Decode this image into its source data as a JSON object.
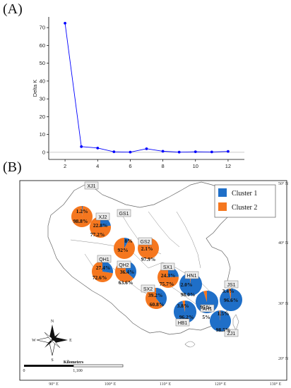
{
  "panel_a_label": "(A)",
  "panel_b_label": "(B)",
  "chart_data": [
    {
      "type": "line",
      "xlabel": "K",
      "ylabel": "Delta K",
      "x": [
        2,
        3,
        4,
        5,
        6,
        7,
        8,
        9,
        10,
        11,
        12
      ],
      "y": [
        72.5,
        3.2,
        2.4,
        0.3,
        0.1,
        2.0,
        0.6,
        0.1,
        0.3,
        0.2,
        0.5
      ],
      "xticks": [
        2,
        4,
        6,
        8,
        10,
        12
      ],
      "yticks": [
        0,
        10,
        20,
        30,
        40,
        50,
        60,
        70
      ],
      "xlim": [
        1,
        13
      ],
      "ylim": [
        -4,
        76
      ],
      "color": "#0000ff"
    },
    {
      "type": "pie",
      "legend": [
        {
          "name": "Cluster 1",
          "color": "#1f6fc8"
        },
        {
          "name": "Cluster 2",
          "color": "#f5771f"
        }
      ],
      "legend_position": "top-right",
      "sites": [
        {
          "name": "XJ1",
          "c1": 1.2,
          "c2": 98.8,
          "c1_label": "1.2%",
          "c2_label": "98.8%"
        },
        {
          "name": "XJ2",
          "c1": 22.8,
          "c2": 77.2,
          "c1_label": "22.8%",
          "c2_label": "77.2%"
        },
        {
          "name": "GS1",
          "c1": 8,
          "c2": 92,
          "c1_label": "8%",
          "c2_label": "92%"
        },
        {
          "name": "GS2",
          "c1": 2.1,
          "c2": 97.9,
          "c1_label": "2.1%",
          "c2_label": "97.9%"
        },
        {
          "name": "QH1",
          "c1": 27.4,
          "c2": 72.6,
          "c1_label": "27.4%",
          "c2_label": "72.6%"
        },
        {
          "name": "QH2",
          "c1": 36.4,
          "c2": 63.6,
          "c1_label": "36.4%",
          "c2_label": "63.6%"
        },
        {
          "name": "SX1",
          "c1": 24.3,
          "c2": 75.7,
          "c1_label": "24.3%",
          "c2_label": "75.7%"
        },
        {
          "name": "SX2",
          "c1": 39.2,
          "c2": 60.8,
          "c1_label": "39.2%",
          "c2_label": "60.8%"
        },
        {
          "name": "HN1",
          "c1": 98.0,
          "c2": 2.0,
          "c1_label": "98.0%",
          "c2_label": "2.0%"
        },
        {
          "name": "AH1",
          "c1": 95,
          "c2": 5,
          "c1_label": "95%",
          "c2_label": "5%"
        },
        {
          "name": "JS1",
          "c1": 96.6,
          "c2": 3.4,
          "c1_label": "96.6%",
          "c2_label": "3.4%"
        },
        {
          "name": "HB1",
          "c1": 96.2,
          "c2": 3.8,
          "c1_label": "96.2%",
          "c2_label": "3.8%"
        },
        {
          "name": "ZJ1",
          "c1": 98.5,
          "c2": 1.5,
          "c1_label": "98.5%",
          "c2_label": "1.5%"
        }
      ],
      "longitude_ticks": [
        "90° E",
        "100° E",
        "110° E",
        "120° E",
        "130° E"
      ],
      "latitude_ticks": [
        "50° N",
        "40° N",
        "30° N",
        "20° N"
      ],
      "scale_bar": {
        "title": "Kilometers",
        "start": "0",
        "end": "1,100"
      },
      "compass": [
        "N",
        "E",
        "S",
        "W"
      ]
    }
  ]
}
